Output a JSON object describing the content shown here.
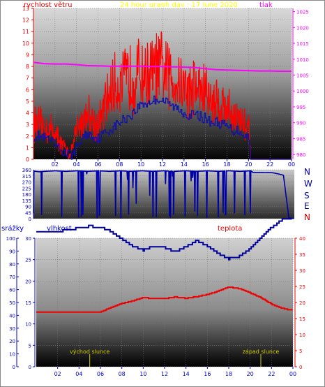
{
  "header": {
    "title": "24 hour graph day : 17 June 2020",
    "left_label": "rychlost větru",
    "right_label": "tlak"
  },
  "direction_labels": [
    "N",
    "W",
    "S",
    "E",
    "N"
  ],
  "bottom_labels": {
    "precip": "srážky",
    "humidity": "vlhkost",
    "temperature": "teplota",
    "sunrise": "východ slunce",
    "sunset": "západ slunce"
  },
  "colors": {
    "wind": "#ff0000",
    "pressure": "#ff00ff",
    "direction": "#0000aa",
    "humidity": "#000099",
    "temperature": "#ee0000",
    "axis_blue": "#0000cc",
    "axis_red": "#ee0000",
    "title": "#ffff00",
    "sun": "#cccc00"
  },
  "chart_data": [
    {
      "type": "line",
      "title": "24 hour graph day : 17 June 2020",
      "x_ticks": [
        "02",
        "04",
        "06",
        "08",
        "10",
        "12",
        "14",
        "16",
        "18",
        "20",
        "22",
        "00"
      ],
      "xlim": [
        0,
        24
      ],
      "y_left": {
        "label": "rychlost větru",
        "ticks": [
          0,
          1,
          2,
          3,
          4,
          5,
          6,
          7,
          8,
          9,
          10,
          11,
          12,
          13
        ],
        "ylim": [
          0,
          13
        ]
      },
      "y_right": {
        "label": "tlak",
        "ticks": [
          980,
          985,
          990,
          995,
          1000,
          1005,
          1010,
          1015,
          1020,
          1025
        ],
        "ylim": [
          978.5,
          1026
        ]
      },
      "series": [
        {
          "axis": "right",
          "x": [
            0,
            1,
            2,
            3,
            4,
            5,
            6,
            7,
            8,
            9,
            10,
            11,
            12,
            13,
            14,
            15,
            16,
            17,
            18,
            19,
            20,
            21,
            22,
            23,
            24
          ],
          "values": [
            1009,
            1008.6,
            1008.5,
            1008.5,
            1008.3,
            1008,
            1007.9,
            1007.8,
            1007.8,
            1007.8,
            1007.8,
            1007.7,
            1007.7,
            1007.6,
            1007.5,
            1007.4,
            1007,
            1006.7,
            1006.6,
            1006.5,
            1006.4,
            1006.3,
            1006.3,
            1006.2,
            1006.2
          ]
        },
        {
          "axis": "left",
          "x": [
            0,
            0.5,
            1,
            1.5,
            2,
            2.5,
            3,
            3.5,
            4,
            4.5,
            5,
            5.5,
            6,
            6.5,
            7,
            7.5,
            8,
            8.5,
            9,
            9.5,
            10,
            10.5,
            11,
            11.5,
            12,
            12.5,
            13,
            13.5,
            14,
            14.5,
            15,
            15.5,
            16,
            16.5,
            17,
            17.5,
            18,
            18.5,
            19,
            19.5,
            20,
            20.2,
            21,
            22,
            23,
            24
          ],
          "values": [
            3.5,
            3.2,
            3,
            2.8,
            2.5,
            1.5,
            1,
            0.5,
            2.8,
            3.5,
            4.5,
            3.8,
            3,
            4.5,
            6,
            6.8,
            7,
            7.2,
            7.6,
            7.8,
            8,
            7.8,
            8,
            8.4,
            8.3,
            7.8,
            7.5,
            7.3,
            6.8,
            6.4,
            6.8,
            6.5,
            6.3,
            5.4,
            5.5,
            5,
            4.8,
            4.2,
            3.8,
            3.5,
            3,
            0,
            0,
            0,
            0,
            0
          ]
        },
        {
          "axis": "left",
          "x": [
            0,
            0.5,
            1,
            1.5,
            2,
            2.5,
            3,
            3.5,
            4,
            4.5,
            5,
            5.5,
            6,
            6.5,
            7,
            7.5,
            8,
            8.5,
            9,
            9.5,
            10,
            10.5,
            11,
            11.5,
            12,
            12.5,
            13,
            13.5,
            14,
            14.5,
            15,
            15.5,
            16,
            16.5,
            17,
            17.5,
            18,
            18.5,
            19,
            19.5,
            20,
            20.2,
            21,
            22,
            23,
            24
          ],
          "values": [
            2,
            2,
            1.8,
            1.6,
            1.2,
            0.8,
            0.5,
            0.3,
            1,
            1.8,
            2.2,
            2,
            1.8,
            2.2,
            2.5,
            2.8,
            3.2,
            3.5,
            3.8,
            4.2,
            4.8,
            4.8,
            5,
            5.2,
            5.1,
            4.8,
            4.5,
            4.3,
            4,
            3.8,
            3.8,
            3.7,
            3.5,
            3.2,
            3.2,
            3,
            2.8,
            2.5,
            2.5,
            2.2,
            1.8,
            0,
            0,
            0,
            0,
            0
          ]
        }
      ]
    },
    {
      "type": "line",
      "x_ticks": [],
      "xlim": [
        0,
        24
      ],
      "y_left": {
        "ticks": [
          0,
          45,
          90,
          135,
          180,
          225,
          270,
          315,
          360
        ],
        "ylim": [
          0,
          360
        ]
      },
      "y_right": {
        "ticks": [
          "N",
          "W",
          "S",
          "E",
          "N"
        ]
      },
      "series": [
        {
          "x": [
            0,
            0.5,
            1,
            1.5,
            2,
            2.5,
            3,
            3.5,
            4,
            4.5,
            5,
            5.5,
            6,
            6.5,
            7,
            7.5,
            8,
            8.5,
            9,
            9.5,
            10,
            10.5,
            11,
            11.5,
            12,
            12.5,
            13,
            13.5,
            14,
            14.5,
            15,
            15.5,
            16,
            16.5,
            17,
            17.5,
            18,
            18.5,
            19,
            19.5,
            20,
            20.2,
            21,
            22,
            22.5,
            23,
            23.5,
            24
          ],
          "values": [
            350,
            345,
            348,
            350,
            352,
            350,
            348,
            350,
            352,
            350,
            348,
            350,
            352,
            350,
            348,
            350,
            352,
            350,
            348,
            350,
            352,
            350,
            348,
            350,
            352,
            350,
            348,
            350,
            352,
            350,
            348,
            350,
            352,
            350,
            348,
            350,
            352,
            350,
            348,
            350,
            352,
            340,
            340,
            338,
            330,
            320,
            5,
            0
          ]
        }
      ]
    },
    {
      "type": "line",
      "x_ticks": [
        "02",
        "04",
        "06",
        "08",
        "10",
        "12",
        "14",
        "16",
        "18",
        "20",
        "22",
        "00"
      ],
      "xlim": [
        0,
        24
      ],
      "y_axes": [
        {
          "label": "srážky",
          "ticks": [
            0,
            10,
            20,
            30,
            40,
            50,
            60,
            70,
            80,
            90,
            100
          ],
          "ylim": [
            0,
            100
          ]
        },
        {
          "label": "vlhkost",
          "ticks": [
            0,
            5,
            10,
            15,
            20,
            25,
            30
          ],
          "ylim": [
            0,
            30
          ]
        },
        {
          "label": "teplota",
          "ticks": [
            0,
            5,
            10,
            15,
            20,
            25,
            30,
            35,
            40
          ],
          "ylim": [
            0,
            40
          ]
        }
      ],
      "annotations": [
        {
          "text": "východ slunce",
          "x": 5.0
        },
        {
          "text": "západ slunce",
          "x": 21.0
        }
      ],
      "series": [
        {
          "name": "vlhkost",
          "axis": "right",
          "x": [
            0,
            1,
            2,
            3,
            4,
            5,
            6,
            7,
            8,
            9,
            10,
            11,
            12,
            13,
            14,
            15,
            16,
            17,
            18,
            19,
            20,
            21,
            22,
            23,
            24
          ],
          "values": [
            31.5,
            31.3,
            31.5,
            32,
            32.4,
            32.8,
            32.6,
            31.6,
            29.8,
            28.2,
            27.2,
            28.2,
            27.8,
            26.8,
            28,
            29.4,
            28.2,
            26.5,
            25.2,
            25.8,
            27.6,
            30,
            32.5,
            34.3,
            34.3
          ]
        },
        {
          "name": "teplota",
          "axis": "right",
          "x": [
            0,
            1,
            2,
            3,
            4,
            5,
            6,
            7,
            8,
            9,
            10,
            11,
            12,
            13,
            14,
            15,
            16,
            17,
            18,
            19,
            20,
            21,
            22,
            23,
            24
          ],
          "values": [
            17,
            17.1,
            17,
            17,
            17,
            17,
            17,
            18.5,
            19.7,
            20.5,
            21.5,
            21.2,
            21.2,
            21.7,
            21.3,
            21.8,
            22.5,
            23.5,
            24.8,
            24.3,
            23,
            21.5,
            19.5,
            18.2,
            17.5
          ]
        }
      ]
    }
  ]
}
